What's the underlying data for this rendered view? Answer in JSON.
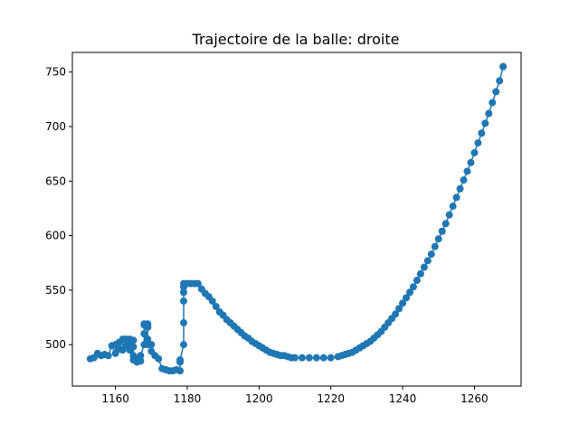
{
  "chart_data": {
    "type": "line",
    "title": "Trajectoire de la balle: droite",
    "xlabel": "",
    "ylabel": "",
    "xlim": [
      1148,
      1273
    ],
    "ylim": [
      462,
      768
    ],
    "xticks": [
      1160,
      1180,
      1200,
      1220,
      1240,
      1260
    ],
    "yticks": [
      500,
      550,
      600,
      650,
      700,
      750
    ],
    "xtick_labels": [
      "1160",
      "1180",
      "1200",
      "1220",
      "1240",
      "1260"
    ],
    "ytick_labels": [
      "500",
      "550",
      "600",
      "650",
      "700",
      "750"
    ],
    "grid": false,
    "marker": "circle",
    "color": "#1f77b4",
    "series": [
      {
        "x": [
          1153,
          1154,
          1155,
          1156,
          1157,
          1158,
          1159,
          1160,
          1160,
          1161,
          1161,
          1162,
          1162,
          1163,
          1163,
          1164,
          1164,
          1164,
          1165,
          1165,
          1165,
          1165,
          1166,
          1166,
          1167,
          1167,
          1168,
          1168,
          1168,
          1168,
          1169,
          1169,
          1169,
          1169,
          1170,
          1170,
          1171,
          1172,
          1173,
          1174,
          1175,
          1176,
          1177,
          1178,
          1178,
          1178,
          1179,
          1179,
          1179,
          1179,
          1179,
          1179,
          1180,
          1181,
          1182,
          1183,
          1184,
          1185,
          1186,
          1187,
          1188,
          1189,
          1190,
          1191,
          1192,
          1193,
          1194,
          1195,
          1196,
          1197,
          1198,
          1199,
          1200,
          1201,
          1202,
          1203,
          1204,
          1205,
          1206,
          1207,
          1208,
          1209,
          1210,
          1212,
          1214,
          1216,
          1218,
          1220,
          1222,
          1223,
          1224,
          1225,
          1226,
          1227,
          1228,
          1229,
          1230,
          1231,
          1232,
          1233,
          1234,
          1235,
          1236,
          1237,
          1238,
          1239,
          1240,
          1241,
          1242,
          1243,
          1244,
          1245,
          1246,
          1247,
          1248,
          1249,
          1250,
          1251,
          1252,
          1253,
          1254,
          1255,
          1256,
          1257,
          1258,
          1259,
          1260,
          1261,
          1262,
          1263,
          1264,
          1265,
          1266,
          1267,
          1268,
          1268
        ],
        "y": [
          487,
          488,
          492,
          490,
          491,
          490,
          499,
          492,
          500,
          496,
          502,
          495,
          505,
          499,
          505,
          500,
          505,
          495,
          504,
          498,
          490,
          486,
          486,
          484,
          485,
          490,
          500,
          519,
          510,
          518,
          519,
          505,
          516,
          500,
          500,
          494,
          490,
          487,
          478,
          477,
          476,
          476,
          477,
          476,
          484,
          486,
          500,
          520,
          540,
          556,
          553,
          548,
          556,
          556,
          556,
          556,
          551,
          547,
          544,
          540,
          535,
          530,
          527,
          523,
          520,
          517,
          514,
          511,
          508,
          506,
          503,
          501,
          499,
          497,
          495,
          493,
          492,
          491,
          490,
          490,
          489,
          488,
          488,
          488,
          488,
          488,
          488,
          488,
          489,
          490,
          491,
          492,
          493,
          495,
          497,
          499,
          501,
          503,
          506,
          509,
          512,
          516,
          520,
          524,
          528,
          533,
          538,
          543,
          548,
          553,
          559,
          565,
          571,
          577,
          583,
          590,
          597,
          604,
          611,
          619,
          627,
          635,
          643,
          651,
          659,
          667,
          676,
          685,
          694,
          703,
          712,
          722,
          732,
          742,
          755,
          755
        ]
      }
    ]
  }
}
